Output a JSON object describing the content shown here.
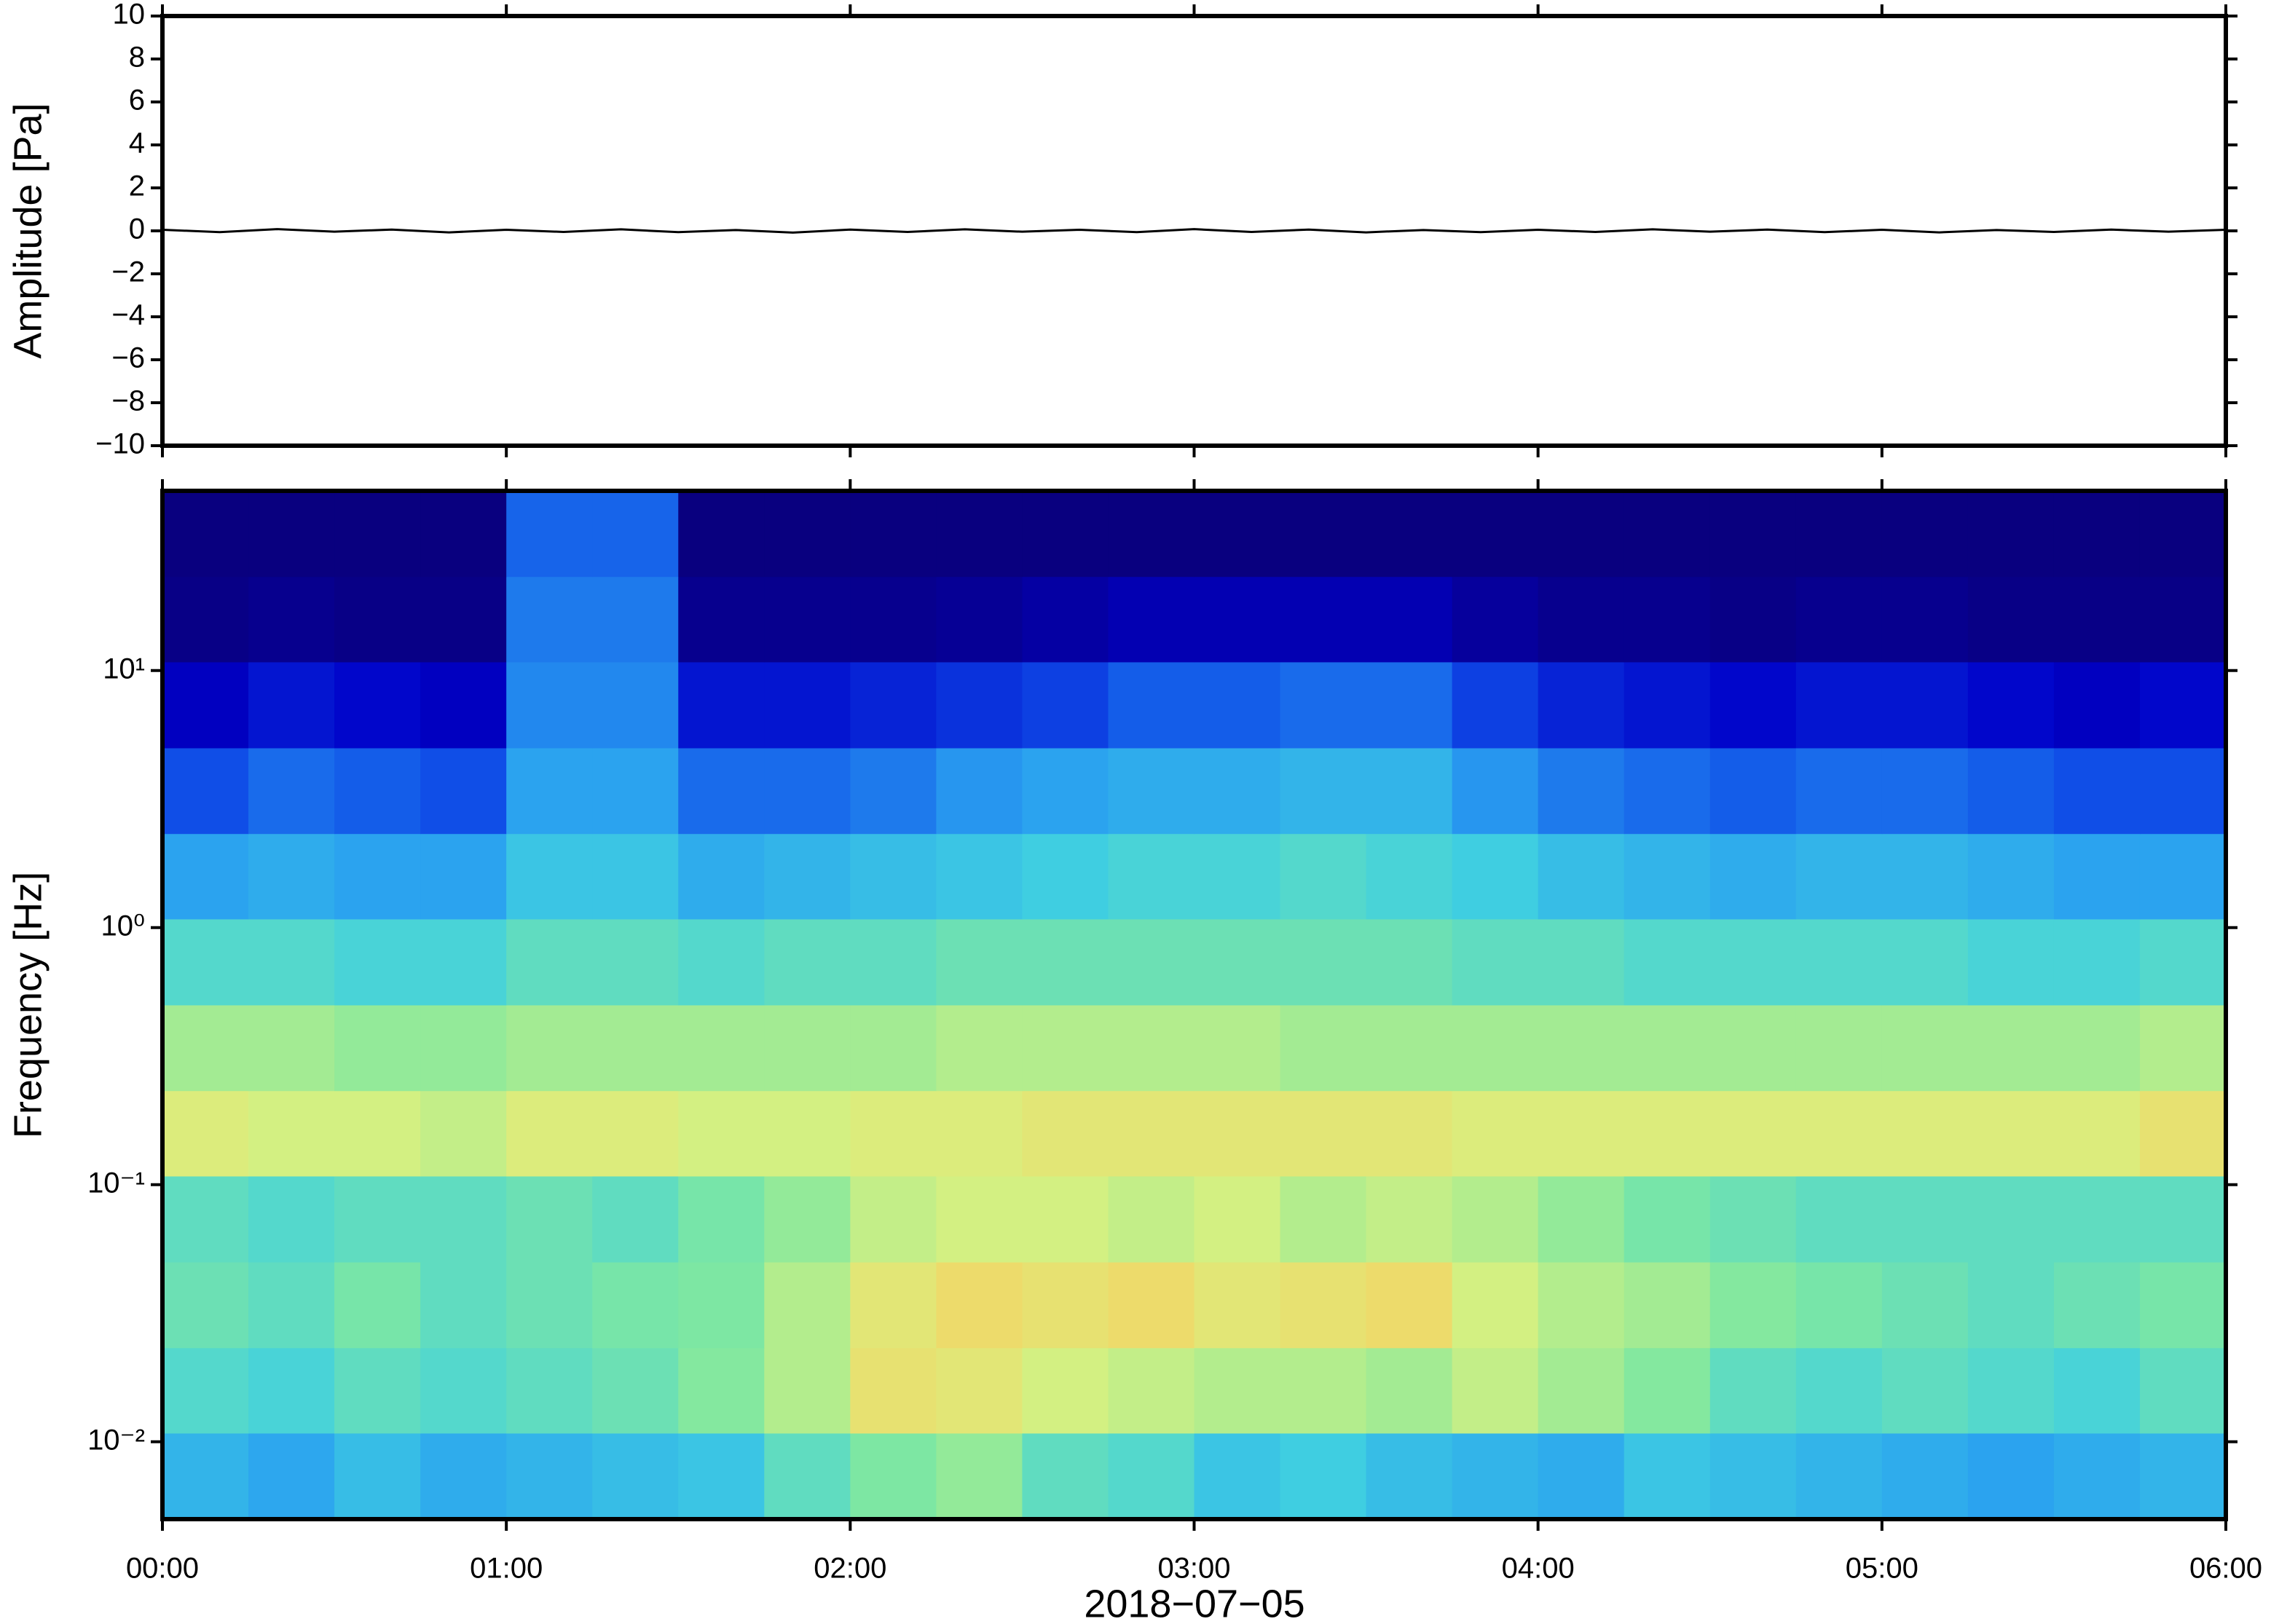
{
  "chart_data": [
    {
      "type": "line",
      "ylabel": "Amplitude [Pa]",
      "x": [
        0,
        10,
        20,
        30,
        40,
        50,
        60,
        70,
        80,
        90,
        100,
        110,
        120,
        130,
        140,
        150,
        160,
        170,
        180,
        190,
        200,
        210,
        220,
        230,
        240,
        250,
        260,
        270,
        280,
        290,
        300,
        310,
        320,
        330,
        340,
        350,
        360
      ],
      "series": [
        {
          "color": "#000000",
          "values": [
            0.05,
            -0.06,
            0.08,
            -0.04,
            0.06,
            -0.07,
            0.05,
            -0.05,
            0.07,
            -0.06,
            0.04,
            -0.08,
            0.06,
            -0.05,
            0.07,
            -0.04,
            0.05,
            -0.06,
            0.08,
            -0.05,
            0.06,
            -0.07,
            0.04,
            -0.06,
            0.05,
            -0.05,
            0.07,
            -0.04,
            0.06,
            -0.06,
            0.05,
            -0.07,
            0.04,
            -0.05,
            0.06,
            -0.04,
            0.05
          ]
        }
      ],
      "xlim": [
        0,
        360
      ],
      "xticks": [
        0,
        60,
        120,
        180,
        240,
        300,
        360
      ],
      "ylim": [
        -10,
        10
      ],
      "yticks": [
        {
          "value": -10,
          "label": "−10"
        },
        {
          "value": -8,
          "label": "−8"
        },
        {
          "value": -6,
          "label": "−6"
        },
        {
          "value": -4,
          "label": "−4"
        },
        {
          "value": -2,
          "label": "−2"
        },
        0,
        2,
        4,
        6,
        8,
        10
      ]
    },
    {
      "type": "heatmap",
      "ylabel": "Frequency [Hz]",
      "xlabel": "2018−07−05",
      "ylog": true,
      "xlim": [
        0,
        360
      ],
      "xticks": [
        {
          "value": 0,
          "label": "00:00"
        },
        {
          "value": 60,
          "label": "01:00"
        },
        {
          "value": 120,
          "label": "02:00"
        },
        {
          "value": 180,
          "label": "03:00"
        },
        {
          "value": 240,
          "label": "04:00"
        },
        {
          "value": 300,
          "label": "05:00"
        },
        {
          "value": 360,
          "label": "06:00"
        }
      ],
      "ylim": [
        0.005,
        50
      ],
      "yticks": [
        {
          "value": 0.01,
          "label": "10⁻²"
        },
        {
          "value": 0.1,
          "label": "10⁻¹"
        },
        {
          "value": 1,
          "label": "10⁰"
        },
        {
          "value": 10,
          "label": "10¹"
        }
      ],
      "x_edges": [
        0,
        15,
        30,
        45,
        60,
        75,
        90,
        105,
        120,
        135,
        150,
        165,
        180,
        195,
        210,
        225,
        240,
        255,
        270,
        285,
        300,
        315,
        330,
        345,
        360
      ],
      "y_edges": [
        0.005,
        0.0108,
        0.0232,
        0.05,
        0.108,
        0.232,
        0.5,
        1.08,
        2.32,
        5,
        10.8,
        23.2,
        50
      ],
      "zlim": [
        0,
        100
      ],
      "colormap": [
        "#0a0078",
        "#0000c8",
        "#1050e8",
        "#2aa0f0",
        "#40d0e0",
        "#80e8a0",
        "#d8f080",
        "#f8d060",
        "#f8a050",
        "#e05040"
      ],
      "z": [
        [
          38,
          35,
          40,
          36,
          38,
          40,
          42,
          50,
          55,
          58,
          50,
          48,
          42,
          44,
          40,
          38,
          36,
          42,
          40,
          38,
          36,
          34,
          36,
          38
        ],
        [
          48,
          46,
          50,
          48,
          50,
          52,
          56,
          62,
          72,
          70,
          66,
          64,
          62,
          62,
          60,
          64,
          60,
          56,
          50,
          48,
          50,
          48,
          46,
          50
        ],
        [
          52,
          50,
          54,
          50,
          52,
          54,
          55,
          62,
          70,
          74,
          72,
          74,
          70,
          72,
          74,
          66,
          62,
          60,
          56,
          54,
          52,
          50,
          52,
          54
        ],
        [
          50,
          48,
          50,
          50,
          52,
          50,
          54,
          58,
          64,
          66,
          66,
          64,
          66,
          62,
          64,
          62,
          58,
          54,
          52,
          50,
          50,
          50,
          50,
          50
        ],
        [
          68,
          66,
          66,
          64,
          68,
          68,
          66,
          66,
          68,
          68,
          70,
          70,
          70,
          70,
          70,
          68,
          68,
          68,
          68,
          68,
          68,
          68,
          68,
          72
        ],
        [
          60,
          60,
          58,
          58,
          60,
          60,
          60,
          60,
          60,
          62,
          62,
          62,
          62,
          60,
          60,
          60,
          60,
          60,
          60,
          60,
          60,
          60,
          60,
          62
        ],
        [
          48,
          48,
          46,
          46,
          50,
          50,
          48,
          50,
          50,
          52,
          52,
          52,
          52,
          52,
          52,
          50,
          50,
          48,
          48,
          48,
          48,
          46,
          46,
          48
        ],
        [
          34,
          36,
          34,
          34,
          42,
          42,
          36,
          38,
          40,
          42,
          44,
          46,
          46,
          48,
          46,
          44,
          40,
          38,
          36,
          38,
          38,
          36,
          34,
          34
        ],
        [
          22,
          26,
          24,
          22,
          34,
          34,
          26,
          26,
          28,
          32,
          34,
          36,
          36,
          38,
          38,
          32,
          28,
          26,
          24,
          26,
          26,
          24,
          22,
          22
        ],
        [
          10,
          14,
          12,
          10,
          30,
          30,
          14,
          14,
          16,
          18,
          20,
          24,
          24,
          26,
          26,
          20,
          16,
          14,
          12,
          14,
          14,
          12,
          10,
          12
        ],
        [
          2,
          3,
          2,
          2,
          28,
          28,
          3,
          3,
          3,
          4,
          6,
          8,
          8,
          8,
          8,
          5,
          3,
          3,
          2,
          3,
          3,
          2,
          2,
          2
        ],
        [
          1,
          1,
          1,
          1,
          25,
          25,
          1,
          1,
          1,
          1,
          1,
          1,
          1,
          1,
          1,
          1,
          1,
          1,
          1,
          1,
          1,
          1,
          1,
          1
        ]
      ]
    }
  ]
}
